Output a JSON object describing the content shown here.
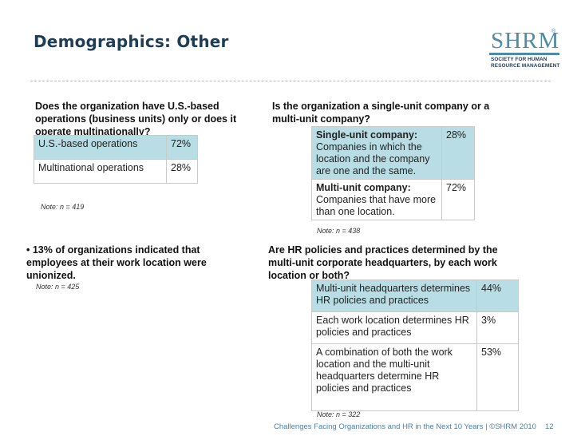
{
  "title": "Demographics: Other",
  "logo": {
    "mark": "SHRM",
    "reg": "®",
    "line1": "SOCIETY FOR HUMAN",
    "line2": "RESOURCE MANAGEMENT"
  },
  "q1": {
    "question": "Does the organization have U.S.-based operations (business units) only or does it operate multinationally?",
    "rows": [
      {
        "label": "U.S.-based operations",
        "pct": "72%"
      },
      {
        "label": "Multinational operations",
        "pct": "28%"
      }
    ],
    "note": "Note: n = 419"
  },
  "q2": {
    "question": "Is the organization a single-unit company or a multi-unit company?",
    "rows": [
      {
        "title": "Single-unit company:",
        "desc": "Companies in which the location and the company are one and the same.",
        "pct": "28%"
      },
      {
        "title": "Multi-unit company:",
        "desc": "Companies that have more than one location.",
        "pct": "72%"
      }
    ],
    "note": "Note: n = 438"
  },
  "q3": {
    "statement": "• 13% of organizations indicated that employees at their work location were unionized.",
    "note": "Note: n = 425"
  },
  "q4": {
    "question": "Are HR policies and practices determined by the multi-unit corporate headquarters, by each work location or both?",
    "rows": [
      {
        "label": "Multi-unit headquarters determines HR policies and practices",
        "pct": "44%"
      },
      {
        "label": "Each work location determines HR policies and practices",
        "pct": "3%"
      },
      {
        "label": "A combination of both the work location and the multi-unit headquarters determine HR policies and practices",
        "pct": "53%"
      }
    ],
    "note": "Note: n = 322"
  },
  "footer": {
    "text": "Challenges Facing Organizations and HR in the Next 10 Years | ©SHRM 2010",
    "page": "12"
  },
  "colors": {
    "title": "#1f3d55",
    "teal": "#b8dde5",
    "footer": "#4f7fa4",
    "logo": "#4f8aa6"
  }
}
